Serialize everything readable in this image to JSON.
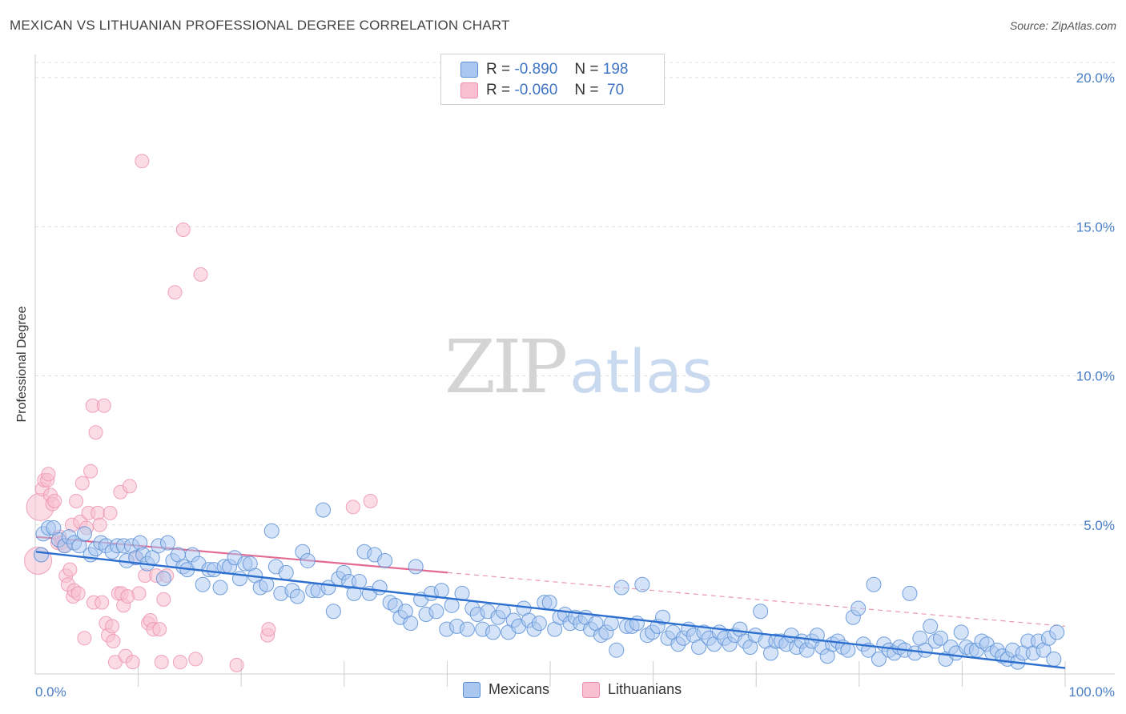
{
  "title": "MEXICAN VS LITHUANIAN PROFESSIONAL DEGREE CORRELATION CHART",
  "source": "Source: ZipAtlas.com",
  "watermark": {
    "zip": "ZIP",
    "atlas": "atlas"
  },
  "legend": {
    "rows": [
      {
        "r_label": "R =",
        "r_value": "-0.890",
        "n_label": "N =",
        "n_value": "198"
      },
      {
        "r_label": "R =",
        "r_value": "-0.060",
        "n_label": "N =",
        "n_value": " 70"
      }
    ]
  },
  "bottom_legend": {
    "mexicans": "Mexicans",
    "lithuanians": "Lithuanians"
  },
  "colors": {
    "mexicans_fill": "#a9c7ef",
    "mexicans_stroke": "#5b8fd6",
    "mexicans_line": "#2d6fcf",
    "lithuanians_fill": "#f7bfd0",
    "lithuanians_stroke": "#ec8fac",
    "lithuanians_line": "#e36b93",
    "tick_text": "#4a7fc6",
    "grid": "#dddddd"
  },
  "chart_data": {
    "type": "scatter",
    "title": "MEXICAN VS LITHUANIAN PROFESSIONAL DEGREE CORRELATION CHART",
    "xlabel": "",
    "ylabel": "Professional Degree",
    "xlim": [
      0,
      100
    ],
    "ylim": [
      0,
      20.5
    ],
    "y_ticks": [
      5,
      10,
      15,
      20
    ],
    "y_tick_labels": [
      "5.0%",
      "10.0%",
      "15.0%",
      "20.0%"
    ],
    "x_tick_labels": [
      "0.0%",
      "100.0%"
    ],
    "series": [
      {
        "name": "Mexicans",
        "R": -0.89,
        "N": 198,
        "trend": {
          "x": [
            0,
            100
          ],
          "y": [
            4.1,
            0.2
          ]
        },
        "points": [
          [
            0.5,
            4.0
          ],
          [
            0.7,
            4.7
          ],
          [
            1.2,
            4.9
          ],
          [
            1.7,
            4.9
          ],
          [
            2.2,
            4.5
          ],
          [
            2.8,
            4.3
          ],
          [
            3.2,
            4.6
          ],
          [
            3.7,
            4.4
          ],
          [
            4.2,
            4.3
          ],
          [
            4.7,
            4.7
          ],
          [
            5.3,
            4.0
          ],
          [
            5.8,
            4.2
          ],
          [
            6.3,
            4.4
          ],
          [
            6.8,
            4.3
          ],
          [
            7.4,
            4.1
          ],
          [
            7.9,
            4.3
          ],
          [
            8.5,
            4.3
          ],
          [
            8.8,
            3.8
          ],
          [
            9.3,
            4.3
          ],
          [
            9.7,
            3.9
          ],
          [
            10.1,
            4.4
          ],
          [
            10.4,
            4.0
          ],
          [
            10.8,
            3.7
          ],
          [
            11.3,
            3.9
          ],
          [
            11.9,
            4.3
          ],
          [
            12.4,
            3.2
          ],
          [
            12.8,
            4.4
          ],
          [
            13.3,
            3.8
          ],
          [
            13.8,
            4.0
          ],
          [
            14.3,
            3.6
          ],
          [
            14.7,
            3.5
          ],
          [
            15.2,
            4.0
          ],
          [
            15.8,
            3.7
          ],
          [
            16.2,
            3.0
          ],
          [
            16.8,
            3.5
          ],
          [
            17.3,
            3.5
          ],
          [
            17.9,
            2.9
          ],
          [
            18.3,
            3.6
          ],
          [
            18.8,
            3.6
          ],
          [
            19.3,
            3.9
          ],
          [
            19.8,
            3.2
          ],
          [
            20.3,
            3.7
          ],
          [
            20.8,
            3.7
          ],
          [
            21.3,
            3.3
          ],
          [
            21.8,
            2.9
          ],
          [
            22.4,
            3.0
          ],
          [
            22.9,
            4.8
          ],
          [
            23.3,
            3.6
          ],
          [
            23.8,
            2.7
          ],
          [
            24.3,
            3.4
          ],
          [
            24.9,
            2.8
          ],
          [
            25.4,
            2.6
          ],
          [
            25.9,
            4.1
          ],
          [
            26.4,
            3.8
          ],
          [
            26.9,
            2.8
          ],
          [
            27.4,
            2.8
          ],
          [
            27.9,
            5.5
          ],
          [
            28.4,
            2.9
          ],
          [
            28.9,
            2.1
          ],
          [
            29.4,
            3.2
          ],
          [
            29.9,
            3.4
          ],
          [
            30.4,
            3.1
          ],
          [
            30.9,
            2.7
          ],
          [
            31.4,
            3.1
          ],
          [
            31.9,
            4.1
          ],
          [
            32.4,
            2.7
          ],
          [
            32.9,
            4.0
          ],
          [
            33.4,
            2.9
          ],
          [
            33.9,
            3.8
          ],
          [
            34.4,
            2.4
          ],
          [
            34.9,
            2.3
          ],
          [
            35.4,
            1.9
          ],
          [
            35.9,
            2.1
          ],
          [
            36.4,
            1.7
          ],
          [
            36.9,
            3.6
          ],
          [
            37.4,
            2.5
          ],
          [
            37.9,
            2.0
          ],
          [
            38.4,
            2.7
          ],
          [
            38.9,
            2.1
          ],
          [
            39.4,
            2.8
          ],
          [
            39.9,
            1.5
          ],
          [
            40.4,
            2.3
          ],
          [
            40.9,
            1.6
          ],
          [
            41.4,
            2.7
          ],
          [
            41.9,
            1.5
          ],
          [
            42.4,
            2.2
          ],
          [
            42.9,
            2.0
          ],
          [
            43.4,
            1.5
          ],
          [
            43.9,
            2.1
          ],
          [
            44.4,
            1.4
          ],
          [
            44.9,
            1.9
          ],
          [
            45.4,
            2.1
          ],
          [
            45.9,
            1.4
          ],
          [
            46.4,
            1.8
          ],
          [
            46.9,
            1.6
          ],
          [
            47.4,
            2.2
          ],
          [
            47.9,
            1.8
          ],
          [
            48.4,
            1.5
          ],
          [
            48.9,
            1.7
          ],
          [
            49.4,
            2.4
          ],
          [
            49.9,
            2.4
          ],
          [
            50.4,
            1.5
          ],
          [
            50.9,
            1.9
          ],
          [
            51.4,
            2.0
          ],
          [
            51.9,
            1.7
          ],
          [
            52.4,
            1.9
          ],
          [
            52.9,
            1.7
          ],
          [
            53.4,
            1.9
          ],
          [
            53.9,
            1.5
          ],
          [
            54.4,
            1.7
          ],
          [
            54.9,
            1.3
          ],
          [
            55.4,
            1.4
          ],
          [
            55.9,
            1.7
          ],
          [
            56.4,
            0.8
          ],
          [
            56.9,
            2.9
          ],
          [
            57.4,
            1.6
          ],
          [
            57.9,
            1.6
          ],
          [
            58.4,
            1.7
          ],
          [
            58.9,
            3.0
          ],
          [
            59.4,
            1.3
          ],
          [
            59.9,
            1.4
          ],
          [
            60.4,
            1.6
          ],
          [
            60.9,
            1.9
          ],
          [
            61.4,
            1.2
          ],
          [
            61.9,
            1.4
          ],
          [
            62.4,
            1.0
          ],
          [
            62.9,
            1.2
          ],
          [
            63.4,
            1.5
          ],
          [
            63.9,
            1.3
          ],
          [
            64.4,
            0.9
          ],
          [
            64.9,
            1.4
          ],
          [
            65.4,
            1.2
          ],
          [
            65.9,
            1.0
          ],
          [
            66.4,
            1.4
          ],
          [
            66.9,
            1.2
          ],
          [
            67.4,
            1.0
          ],
          [
            67.9,
            1.3
          ],
          [
            68.4,
            1.5
          ],
          [
            68.9,
            1.1
          ],
          [
            69.4,
            0.9
          ],
          [
            69.9,
            1.3
          ],
          [
            70.4,
            2.1
          ],
          [
            70.9,
            1.1
          ],
          [
            71.4,
            0.7
          ],
          [
            71.9,
            1.1
          ],
          [
            72.4,
            1.1
          ],
          [
            72.9,
            1.0
          ],
          [
            73.4,
            1.3
          ],
          [
            73.9,
            0.9
          ],
          [
            74.4,
            1.1
          ],
          [
            74.9,
            0.8
          ],
          [
            75.4,
            1.1
          ],
          [
            75.9,
            1.3
          ],
          [
            76.4,
            0.9
          ],
          [
            76.9,
            0.6
          ],
          [
            77.4,
            1.0
          ],
          [
            77.9,
            1.1
          ],
          [
            78.4,
            0.9
          ],
          [
            78.9,
            0.8
          ],
          [
            79.4,
            1.9
          ],
          [
            79.9,
            2.2
          ],
          [
            80.4,
            1.0
          ],
          [
            80.9,
            0.8
          ],
          [
            81.4,
            3.0
          ],
          [
            81.9,
            0.5
          ],
          [
            82.4,
            1.0
          ],
          [
            82.9,
            0.8
          ],
          [
            83.4,
            0.7
          ],
          [
            83.9,
            0.9
          ],
          [
            84.4,
            0.8
          ],
          [
            84.9,
            2.7
          ],
          [
            85.4,
            0.7
          ],
          [
            85.9,
            1.2
          ],
          [
            86.4,
            0.8
          ],
          [
            86.9,
            1.6
          ],
          [
            87.4,
            1.1
          ],
          [
            87.9,
            1.2
          ],
          [
            88.4,
            0.5
          ],
          [
            88.9,
            0.9
          ],
          [
            89.4,
            0.7
          ],
          [
            89.9,
            1.4
          ],
          [
            90.4,
            0.9
          ],
          [
            90.9,
            0.8
          ],
          [
            91.4,
            0.8
          ],
          [
            91.9,
            1.1
          ],
          [
            92.4,
            1.0
          ],
          [
            92.9,
            0.7
          ],
          [
            93.4,
            0.8
          ],
          [
            93.9,
            0.6
          ],
          [
            94.4,
            0.5
          ],
          [
            94.9,
            0.8
          ],
          [
            95.4,
            0.4
          ],
          [
            95.9,
            0.7
          ],
          [
            96.4,
            1.1
          ],
          [
            96.9,
            0.7
          ],
          [
            97.4,
            1.1
          ],
          [
            97.9,
            0.8
          ],
          [
            98.4,
            1.2
          ],
          [
            98.9,
            0.5
          ],
          [
            99.2,
            1.4
          ]
        ]
      },
      {
        "name": "Lithuanians",
        "R": -0.06,
        "N": 70,
        "trend_solid": {
          "x": [
            0,
            40
          ],
          "y": [
            4.6,
            3.4
          ]
        },
        "trend_dashed": {
          "x": [
            40,
            100
          ],
          "y": [
            3.4,
            1.6
          ]
        },
        "points": [
          [
            0.2,
            3.8
          ],
          [
            0.4,
            5.6
          ],
          [
            0.6,
            6.2
          ],
          [
            0.8,
            6.5
          ],
          [
            1.1,
            6.5
          ],
          [
            1.2,
            6.7
          ],
          [
            1.4,
            6.0
          ],
          [
            1.6,
            5.7
          ],
          [
            1.8,
            5.8
          ],
          [
            2.1,
            4.4
          ],
          [
            2.3,
            4.6
          ],
          [
            2.5,
            4.4
          ],
          [
            2.7,
            4.3
          ],
          [
            2.9,
            3.3
          ],
          [
            3.1,
            3.0
          ],
          [
            3.3,
            3.5
          ],
          [
            3.5,
            5.0
          ],
          [
            3.6,
            2.6
          ],
          [
            3.7,
            2.8
          ],
          [
            3.9,
            5.8
          ],
          [
            4.1,
            2.7
          ],
          [
            4.3,
            5.1
          ],
          [
            4.5,
            6.4
          ],
          [
            4.7,
            1.2
          ],
          [
            4.9,
            4.9
          ],
          [
            5.1,
            5.4
          ],
          [
            5.3,
            6.8
          ],
          [
            5.5,
            9.0
          ],
          [
            5.6,
            2.4
          ],
          [
            5.8,
            8.1
          ],
          [
            6.0,
            5.4
          ],
          [
            6.2,
            5.0
          ],
          [
            6.4,
            2.4
          ],
          [
            6.6,
            9.0
          ],
          [
            6.8,
            1.7
          ],
          [
            7.0,
            1.3
          ],
          [
            7.2,
            5.4
          ],
          [
            7.4,
            1.6
          ],
          [
            7.5,
            1.1
          ],
          [
            7.7,
            0.4
          ],
          [
            8.0,
            2.7
          ],
          [
            8.2,
            6.1
          ],
          [
            8.3,
            2.7
          ],
          [
            8.5,
            2.3
          ],
          [
            8.7,
            0.6
          ],
          [
            8.9,
            2.6
          ],
          [
            9.1,
            6.3
          ],
          [
            9.4,
            0.4
          ],
          [
            9.7,
            3.9
          ],
          [
            10.0,
            2.7
          ],
          [
            10.3,
            17.2
          ],
          [
            10.6,
            3.3
          ],
          [
            10.9,
            1.7
          ],
          [
            11.1,
            1.8
          ],
          [
            11.4,
            1.5
          ],
          [
            11.7,
            3.3
          ],
          [
            12.0,
            1.5
          ],
          [
            12.2,
            0.4
          ],
          [
            12.4,
            2.5
          ],
          [
            12.7,
            3.3
          ],
          [
            13.5,
            12.8
          ],
          [
            14.0,
            0.4
          ],
          [
            14.3,
            14.9
          ],
          [
            15.5,
            0.5
          ],
          [
            16.0,
            13.4
          ],
          [
            19.5,
            0.3
          ],
          [
            22.5,
            1.3
          ],
          [
            22.6,
            1.5
          ],
          [
            30.8,
            5.6
          ],
          [
            32.5,
            5.8
          ]
        ]
      }
    ]
  }
}
